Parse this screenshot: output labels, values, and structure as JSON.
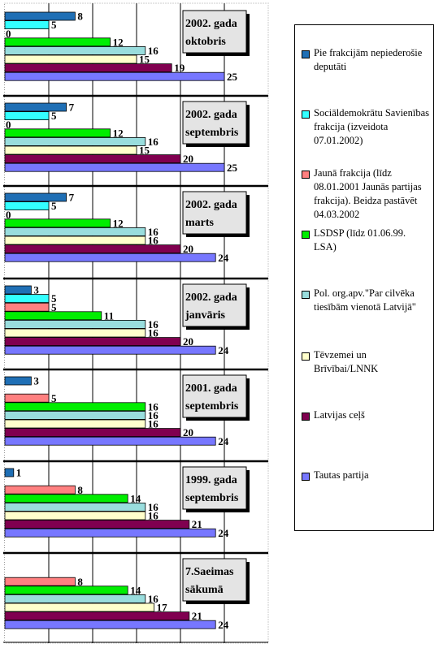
{
  "chart_data": {
    "type": "bar",
    "orientation": "horizontal",
    "xlim": [
      0,
      30
    ],
    "grid": true,
    "legend_position": "right",
    "series": [
      {
        "name": "Pie frakcijām nepiederošie deputāti",
        "color": "#1f6fb5"
      },
      {
        "name": "Sociāldemokrātu Savienības frakcija (izveidota 07.01.2002)",
        "color": "#33ffff"
      },
      {
        "name": "Jaunā frakcija (līdz 08.01.2001 Jaunās partijas frakcija). Beidza pastāvēt 04.03.2002",
        "color": "#ff8080"
      },
      {
        "name": "LSDSP (līdz 01.06.99. LSA)",
        "color": "#00ee00"
      },
      {
        "name": "Pol. org.apv.\"Par cilvēka tiesībām vienotā Latvijā\"",
        "color": "#99dddd"
      },
      {
        "name": "Tēvzemei un Brīvībai/LNNK",
        "color": "#ffffcc"
      },
      {
        "name": "Latvijas ceļš",
        "color": "#800050"
      },
      {
        "name": "Tautas partija",
        "color": "#7777ff"
      }
    ],
    "groups": [
      {
        "label": "2002. gada oktobris",
        "values": [
          8,
          5,
          null,
          12,
          16,
          15,
          19,
          25
        ],
        "labels": [
          "8",
          "5",
          "0",
          "12",
          "16",
          "15",
          "19",
          "25"
        ]
      },
      {
        "label": "2002. gada septembris",
        "values": [
          7,
          5,
          null,
          12,
          16,
          15,
          20,
          25
        ],
        "labels": [
          "7",
          "5",
          "0",
          "12",
          "16",
          "15",
          "20",
          "25"
        ]
      },
      {
        "label": "2002. gada marts",
        "values": [
          7,
          5,
          null,
          12,
          16,
          16,
          20,
          24
        ],
        "labels": [
          "7",
          "5",
          "0",
          "12",
          "16",
          "16",
          "20",
          "24"
        ]
      },
      {
        "label": "2002. gada janvāris",
        "values": [
          3,
          5,
          5,
          11,
          16,
          16,
          20,
          24
        ],
        "labels": [
          "3",
          "5",
          "5",
          "11",
          "16",
          "16",
          "20",
          "24"
        ]
      },
      {
        "label": "2001. gada septembris",
        "values": [
          3,
          null,
          5,
          16,
          16,
          16,
          20,
          24
        ],
        "labels": [
          "3",
          "",
          "5",
          "16",
          "16",
          "16",
          "20",
          "24"
        ]
      },
      {
        "label": "1999. gada septembris",
        "values": [
          1,
          null,
          8,
          14,
          16,
          16,
          21,
          24
        ],
        "labels": [
          "1",
          "",
          "8",
          "14",
          "16",
          "16",
          "21",
          "24"
        ]
      },
      {
        "label": "7.Saeimas sākumā",
        "values": [
          null,
          null,
          8,
          14,
          16,
          17,
          21,
          24
        ],
        "labels": [
          "",
          "",
          "8",
          "14",
          "16",
          "17",
          "21",
          "24"
        ]
      }
    ]
  }
}
